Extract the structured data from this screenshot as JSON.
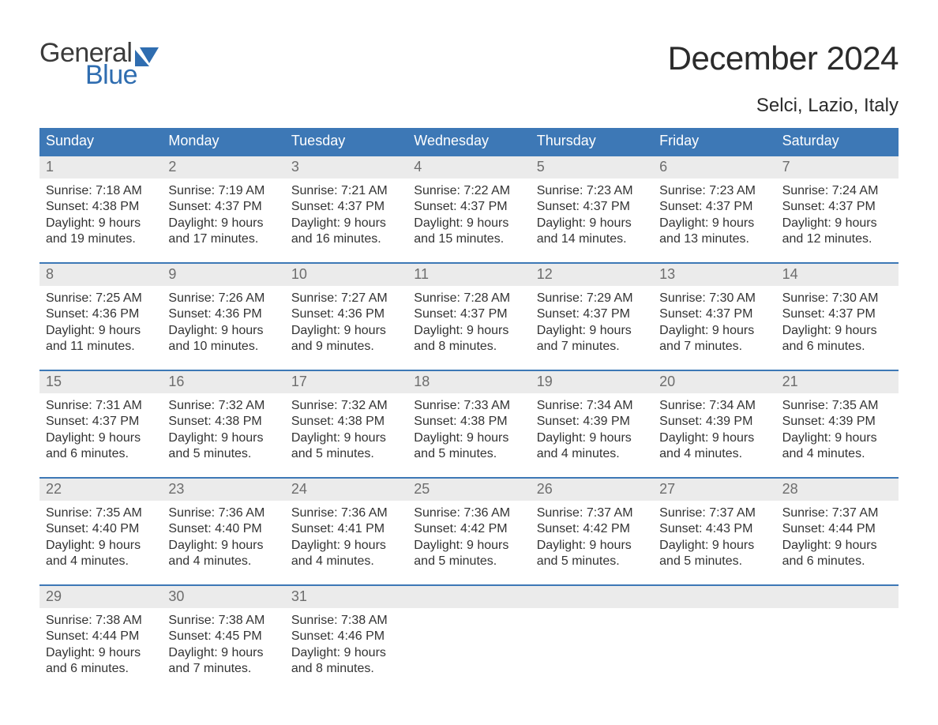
{
  "brand": {
    "general": "General",
    "blue": "Blue",
    "accent_color": "#2f6db0"
  },
  "header": {
    "month_title": "December 2024",
    "location": "Selci, Lazio, Italy"
  },
  "calendar": {
    "header_bg": "#3d78b6",
    "header_fg": "#ffffff",
    "daynum_bg": "#ebebeb",
    "daynum_fg": "#6d6d6d",
    "week_border_color": "#3d78b6",
    "text_color": "#333333",
    "columns": 7,
    "daynames": [
      "Sunday",
      "Monday",
      "Tuesday",
      "Wednesday",
      "Thursday",
      "Friday",
      "Saturday"
    ],
    "weeks": [
      {
        "days": [
          {
            "num": "1",
            "sunrise": "Sunrise: 7:18 AM",
            "sunset": "Sunset: 4:38 PM",
            "d1": "Daylight: 9 hours",
            "d2": "and 19 minutes."
          },
          {
            "num": "2",
            "sunrise": "Sunrise: 7:19 AM",
            "sunset": "Sunset: 4:37 PM",
            "d1": "Daylight: 9 hours",
            "d2": "and 17 minutes."
          },
          {
            "num": "3",
            "sunrise": "Sunrise: 7:21 AM",
            "sunset": "Sunset: 4:37 PM",
            "d1": "Daylight: 9 hours",
            "d2": "and 16 minutes."
          },
          {
            "num": "4",
            "sunrise": "Sunrise: 7:22 AM",
            "sunset": "Sunset: 4:37 PM",
            "d1": "Daylight: 9 hours",
            "d2": "and 15 minutes."
          },
          {
            "num": "5",
            "sunrise": "Sunrise: 7:23 AM",
            "sunset": "Sunset: 4:37 PM",
            "d1": "Daylight: 9 hours",
            "d2": "and 14 minutes."
          },
          {
            "num": "6",
            "sunrise": "Sunrise: 7:23 AM",
            "sunset": "Sunset: 4:37 PM",
            "d1": "Daylight: 9 hours",
            "d2": "and 13 minutes."
          },
          {
            "num": "7",
            "sunrise": "Sunrise: 7:24 AM",
            "sunset": "Sunset: 4:37 PM",
            "d1": "Daylight: 9 hours",
            "d2": "and 12 minutes."
          }
        ]
      },
      {
        "days": [
          {
            "num": "8",
            "sunrise": "Sunrise: 7:25 AM",
            "sunset": "Sunset: 4:36 PM",
            "d1": "Daylight: 9 hours",
            "d2": "and 11 minutes."
          },
          {
            "num": "9",
            "sunrise": "Sunrise: 7:26 AM",
            "sunset": "Sunset: 4:36 PM",
            "d1": "Daylight: 9 hours",
            "d2": "and 10 minutes."
          },
          {
            "num": "10",
            "sunrise": "Sunrise: 7:27 AM",
            "sunset": "Sunset: 4:36 PM",
            "d1": "Daylight: 9 hours",
            "d2": "and 9 minutes."
          },
          {
            "num": "11",
            "sunrise": "Sunrise: 7:28 AM",
            "sunset": "Sunset: 4:37 PM",
            "d1": "Daylight: 9 hours",
            "d2": "and 8 minutes."
          },
          {
            "num": "12",
            "sunrise": "Sunrise: 7:29 AM",
            "sunset": "Sunset: 4:37 PM",
            "d1": "Daylight: 9 hours",
            "d2": "and 7 minutes."
          },
          {
            "num": "13",
            "sunrise": "Sunrise: 7:30 AM",
            "sunset": "Sunset: 4:37 PM",
            "d1": "Daylight: 9 hours",
            "d2": "and 7 minutes."
          },
          {
            "num": "14",
            "sunrise": "Sunrise: 7:30 AM",
            "sunset": "Sunset: 4:37 PM",
            "d1": "Daylight: 9 hours",
            "d2": "and 6 minutes."
          }
        ]
      },
      {
        "days": [
          {
            "num": "15",
            "sunrise": "Sunrise: 7:31 AM",
            "sunset": "Sunset: 4:37 PM",
            "d1": "Daylight: 9 hours",
            "d2": "and 6 minutes."
          },
          {
            "num": "16",
            "sunrise": "Sunrise: 7:32 AM",
            "sunset": "Sunset: 4:38 PM",
            "d1": "Daylight: 9 hours",
            "d2": "and 5 minutes."
          },
          {
            "num": "17",
            "sunrise": "Sunrise: 7:32 AM",
            "sunset": "Sunset: 4:38 PM",
            "d1": "Daylight: 9 hours",
            "d2": "and 5 minutes."
          },
          {
            "num": "18",
            "sunrise": "Sunrise: 7:33 AM",
            "sunset": "Sunset: 4:38 PM",
            "d1": "Daylight: 9 hours",
            "d2": "and 5 minutes."
          },
          {
            "num": "19",
            "sunrise": "Sunrise: 7:34 AM",
            "sunset": "Sunset: 4:39 PM",
            "d1": "Daylight: 9 hours",
            "d2": "and 4 minutes."
          },
          {
            "num": "20",
            "sunrise": "Sunrise: 7:34 AM",
            "sunset": "Sunset: 4:39 PM",
            "d1": "Daylight: 9 hours",
            "d2": "and 4 minutes."
          },
          {
            "num": "21",
            "sunrise": "Sunrise: 7:35 AM",
            "sunset": "Sunset: 4:39 PM",
            "d1": "Daylight: 9 hours",
            "d2": "and 4 minutes."
          }
        ]
      },
      {
        "days": [
          {
            "num": "22",
            "sunrise": "Sunrise: 7:35 AM",
            "sunset": "Sunset: 4:40 PM",
            "d1": "Daylight: 9 hours",
            "d2": "and 4 minutes."
          },
          {
            "num": "23",
            "sunrise": "Sunrise: 7:36 AM",
            "sunset": "Sunset: 4:40 PM",
            "d1": "Daylight: 9 hours",
            "d2": "and 4 minutes."
          },
          {
            "num": "24",
            "sunrise": "Sunrise: 7:36 AM",
            "sunset": "Sunset: 4:41 PM",
            "d1": "Daylight: 9 hours",
            "d2": "and 4 minutes."
          },
          {
            "num": "25",
            "sunrise": "Sunrise: 7:36 AM",
            "sunset": "Sunset: 4:42 PM",
            "d1": "Daylight: 9 hours",
            "d2": "and 5 minutes."
          },
          {
            "num": "26",
            "sunrise": "Sunrise: 7:37 AM",
            "sunset": "Sunset: 4:42 PM",
            "d1": "Daylight: 9 hours",
            "d2": "and 5 minutes."
          },
          {
            "num": "27",
            "sunrise": "Sunrise: 7:37 AM",
            "sunset": "Sunset: 4:43 PM",
            "d1": "Daylight: 9 hours",
            "d2": "and 5 minutes."
          },
          {
            "num": "28",
            "sunrise": "Sunrise: 7:37 AM",
            "sunset": "Sunset: 4:44 PM",
            "d1": "Daylight: 9 hours",
            "d2": "and 6 minutes."
          }
        ]
      },
      {
        "days": [
          {
            "num": "29",
            "sunrise": "Sunrise: 7:38 AM",
            "sunset": "Sunset: 4:44 PM",
            "d1": "Daylight: 9 hours",
            "d2": "and 6 minutes."
          },
          {
            "num": "30",
            "sunrise": "Sunrise: 7:38 AM",
            "sunset": "Sunset: 4:45 PM",
            "d1": "Daylight: 9 hours",
            "d2": "and 7 minutes."
          },
          {
            "num": "31",
            "sunrise": "Sunrise: 7:38 AM",
            "sunset": "Sunset: 4:46 PM",
            "d1": "Daylight: 9 hours",
            "d2": "and 8 minutes."
          },
          {
            "empty": true
          },
          {
            "empty": true
          },
          {
            "empty": true
          },
          {
            "empty": true
          }
        ]
      }
    ]
  }
}
